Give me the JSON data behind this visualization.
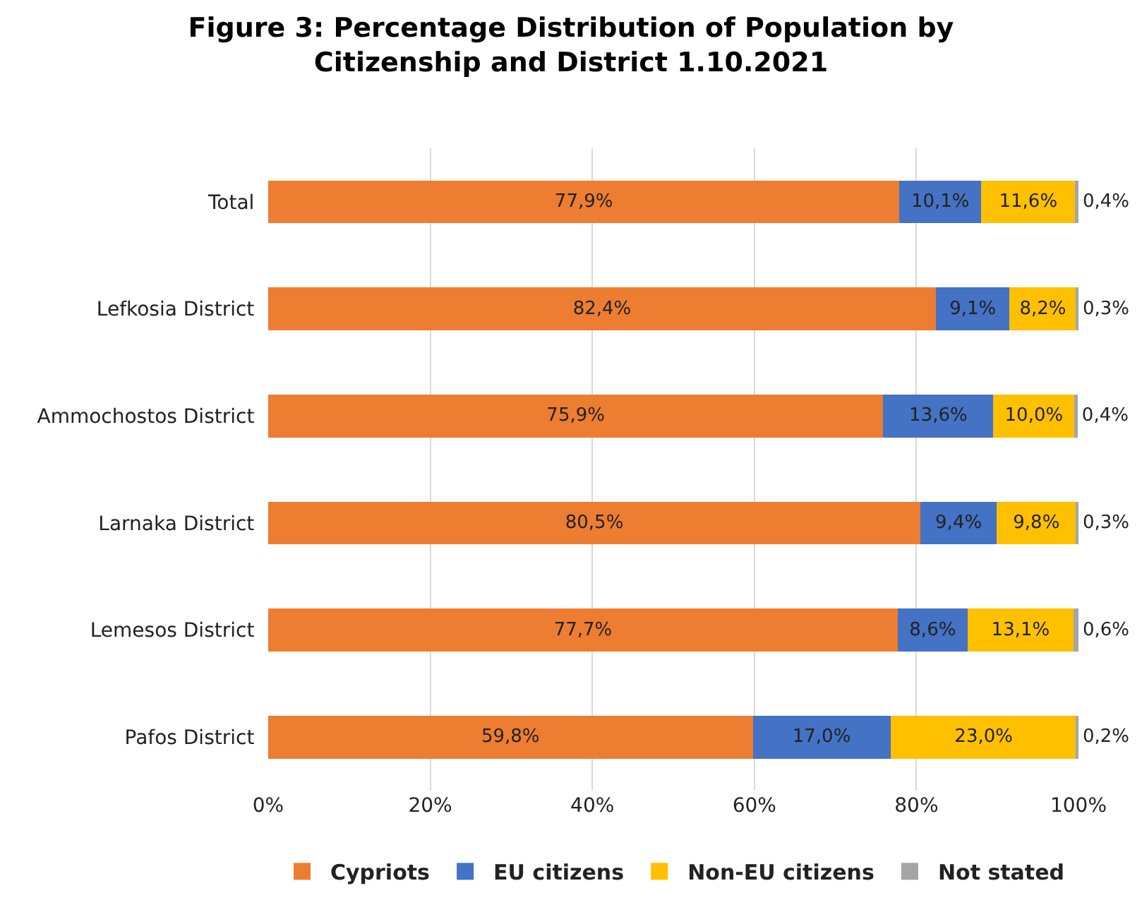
{
  "chart_data": {
    "type": "bar",
    "orientation": "horizontal",
    "stacked": true,
    "title": "Figure 3: Percentage Distribution of Population by\nCitizenship and District 1.10.2021",
    "categories": [
      "Total",
      "Lefkosia District",
      "Ammochostos District",
      "Larnaka District",
      "Lemesos District",
      "Pafos District"
    ],
    "series": [
      {
        "name": "Cypriots",
        "color": "#ed7d31",
        "values": [
          77.9,
          82.4,
          75.9,
          80.5,
          77.7,
          59.8
        ],
        "value_labels": [
          "77,9%",
          "82,4%",
          "75,9%",
          "80,5%",
          "77,7%",
          "59,8%"
        ]
      },
      {
        "name": "EU citizens",
        "color": "#4472c4",
        "values": [
          10.1,
          9.1,
          13.6,
          9.4,
          8.6,
          17.0
        ],
        "value_labels": [
          "10,1%",
          "9,1%",
          "13,6%",
          "9,4%",
          "8,6%",
          "17,0%"
        ]
      },
      {
        "name": "Non-EU citizens",
        "color": "#ffc000",
        "values": [
          11.6,
          8.2,
          10.0,
          9.8,
          13.1,
          23.0
        ],
        "value_labels": [
          "11,6%",
          "8,2%",
          "10,0%",
          "9,8%",
          "13,1%",
          "23,0%"
        ]
      },
      {
        "name": "Not stated",
        "color": "#a5a5a5",
        "values": [
          0.4,
          0.3,
          0.4,
          0.3,
          0.6,
          0.2
        ],
        "value_labels": [
          "0,4%",
          "0,3%",
          "0,4%",
          "0,3%",
          "0,6%",
          "0,2%"
        ]
      }
    ],
    "xlim": [
      0,
      100
    ],
    "xticks": [
      {
        "value": 0,
        "label": "0%"
      },
      {
        "value": 20,
        "label": "20%"
      },
      {
        "value": 40,
        "label": "40%"
      },
      {
        "value": 60,
        "label": "60%"
      },
      {
        "value": 80,
        "label": "80%"
      },
      {
        "value": 100,
        "label": "100%"
      }
    ],
    "grid": "x",
    "legend": "bottom"
  }
}
